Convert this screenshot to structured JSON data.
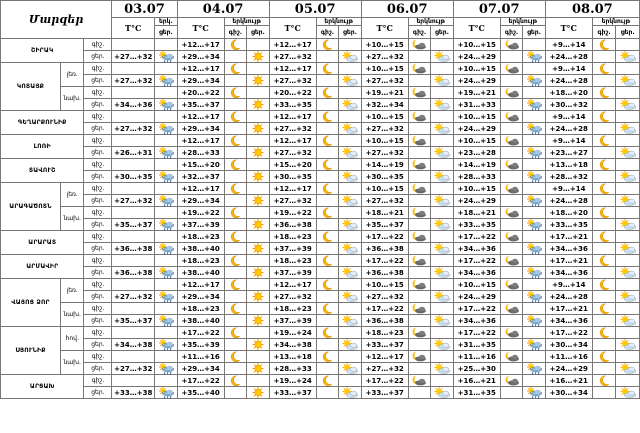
{
  "header": {
    "regions_label": "Մարզեր",
    "dates": [
      "03.07",
      "04.07",
      "05.07",
      "06.07",
      "07.07",
      "08.07"
    ],
    "temp_label": "T°C",
    "sky_label": "երկնույթ",
    "sky_label_short": "երկ.",
    "day_short": "ցերեկ",
    "night_short": "գիշ.",
    "day_abbr": "ցեր.",
    "night_abbr": "գիշ."
  },
  "regions": [
    {
      "name": "ՇԻՐԱԿ",
      "subs": [
        {
          "label": "",
          "rows": [
            {
              "tod": "գիշ.",
              "temps": [
                "",
                "+12…+17",
                "+12…+17",
                "+10…+15",
                "+10…+15",
                "+9…+14"
              ],
              "icons": [
                "",
                "moon",
                "moon",
                "moon-cloud",
                "moon-cloud",
                "moon"
              ]
            },
            {
              "tod": "ցեր.",
              "temps": [
                "+27…+32",
                "+29…+34",
                "+27…+32",
                "+27…+32",
                "+24…+29",
                "+24…+28"
              ],
              "icons": [
                "sun-cloud-rain",
                "sun",
                "sun-cloud",
                "sun-cloud",
                "sun-cloud-rain",
                "sun-cloud"
              ]
            }
          ]
        }
      ]
    },
    {
      "name": "ԿՈՏԱՅՔ",
      "subs": [
        {
          "label": "լեռ.",
          "rows": [
            {
              "tod": "գիշ.",
              "temps": [
                "",
                "+12…+17",
                "+12…+17",
                "+10…+15",
                "+10…+15",
                "+9…+14"
              ],
              "icons": [
                "",
                "moon",
                "moon",
                "moon-cloud",
                "moon-cloud",
                "moon"
              ]
            },
            {
              "tod": "ցեր.",
              "temps": [
                "+27…+32",
                "+29…+34",
                "+27…+32",
                "+27…+32",
                "+24…+29",
                "+24…+28"
              ],
              "icons": [
                "sun-cloud-rain",
                "sun",
                "sun-cloud",
                "sun-cloud",
                "sun-cloud-rain",
                "sun-cloud"
              ]
            }
          ]
        },
        {
          "label": "նախ.",
          "rows": [
            {
              "tod": "գիշ.",
              "temps": [
                "",
                "+20…+22",
                "+20…+22",
                "+19…+21",
                "+19…+21",
                "+18…+20"
              ],
              "icons": [
                "",
                "moon",
                "moon",
                "moon-cloud",
                "moon-cloud",
                "moon"
              ]
            },
            {
              "tod": "ցեր.",
              "temps": [
                "+34…+36",
                "+35…+37",
                "+33…+35",
                "+32…+34",
                "+31…+33",
                "+30…+32"
              ],
              "icons": [
                "sun-cloud-rain",
                "sun",
                "sun-cloud",
                "sun-cloud",
                "sun-cloud-rain",
                "sun-cloud"
              ]
            }
          ]
        }
      ]
    },
    {
      "name": "ԳԵՂԱՐՔՈՒՆԻՔ",
      "subs": [
        {
          "label": "",
          "rows": [
            {
              "tod": "գիշ.",
              "temps": [
                "",
                "+12…+17",
                "+12…+17",
                "+10…+15",
                "+10…+15",
                "+9…+14"
              ],
              "icons": [
                "",
                "moon",
                "moon",
                "moon-cloud",
                "moon-cloud",
                "moon"
              ]
            },
            {
              "tod": "ցեր.",
              "temps": [
                "+27…+32",
                "+29…+34",
                "+27…+32",
                "+27…+32",
                "+24…+29",
                "+24…+28"
              ],
              "icons": [
                "sun-cloud-rain",
                "sun",
                "sun-cloud",
                "sun-cloud",
                "sun-cloud-rain",
                "sun-cloud"
              ]
            }
          ]
        }
      ]
    },
    {
      "name": "ԼՈՌԻ",
      "subs": [
        {
          "label": "",
          "rows": [
            {
              "tod": "գիշ.",
              "temps": [
                "",
                "+12…+17",
                "+12…+17",
                "+10…+15",
                "+10…+15",
                "+9…+14"
              ],
              "icons": [
                "",
                "moon",
                "moon",
                "moon-cloud",
                "moon-cloud",
                "moon"
              ]
            },
            {
              "tod": "ցեր.",
              "temps": [
                "+26…+31",
                "+28…+33",
                "+27…+32",
                "+27…+32",
                "+23…+28",
                "+23…+27"
              ],
              "icons": [
                "sun-cloud-rain",
                "sun",
                "sun-cloud",
                "sun-cloud",
                "sun-cloud-rain",
                "sun-cloud"
              ]
            }
          ]
        }
      ]
    },
    {
      "name": "ՏԱՎՈՒՇ",
      "subs": [
        {
          "label": "",
          "rows": [
            {
              "tod": "գիշ.",
              "temps": [
                "",
                "+15…+20",
                "+15…+20",
                "+14…+19",
                "+14…+19",
                "+13…+18"
              ],
              "icons": [
                "",
                "moon",
                "moon",
                "moon-cloud",
                "moon-cloud",
                "moon"
              ]
            },
            {
              "tod": "ցեր.",
              "temps": [
                "+30…+35",
                "+32…+37",
                "+30…+35",
                "+30…+35",
                "+28…+33",
                "+28…+32"
              ],
              "icons": [
                "sun-cloud-rain",
                "sun",
                "sun-cloud",
                "sun-cloud",
                "sun-cloud-rain",
                "sun-cloud"
              ]
            }
          ]
        }
      ]
    },
    {
      "name": "ԱՐԱԳԱԾՈՏՆ",
      "subs": [
        {
          "label": "լեռ.",
          "rows": [
            {
              "tod": "գիշ.",
              "temps": [
                "",
                "+12…+17",
                "+12…+17",
                "+10…+15",
                "+10…+15",
                "+9…+14"
              ],
              "icons": [
                "",
                "moon",
                "moon",
                "moon-cloud",
                "moon-cloud",
                "moon"
              ]
            },
            {
              "tod": "ցեր.",
              "temps": [
                "+27…+32",
                "+29…+34",
                "+27…+32",
                "+27…+32",
                "+24…+29",
                "+24…+28"
              ],
              "icons": [
                "sun-cloud-rain",
                "sun",
                "sun-cloud",
                "sun-cloud",
                "sun-cloud-rain",
                "sun-cloud"
              ]
            }
          ]
        },
        {
          "label": "նախ.",
          "rows": [
            {
              "tod": "գիշ.",
              "temps": [
                "",
                "+19…+22",
                "+19…+22",
                "+18…+21",
                "+18…+21",
                "+18…+20"
              ],
              "icons": [
                "",
                "moon",
                "moon",
                "moon-cloud",
                "moon-cloud",
                "moon"
              ]
            },
            {
              "tod": "ցեր.",
              "temps": [
                "+35…+37",
                "+37…+39",
                "+36…+38",
                "+35…+37",
                "+33…+35",
                "+33…+35"
              ],
              "icons": [
                "sun-cloud-rain",
                "sun",
                "sun-cloud",
                "sun-cloud",
                "sun-cloud-rain",
                "sun-cloud"
              ]
            }
          ]
        }
      ]
    },
    {
      "name": "ԱՐԱՐԱՏ",
      "subs": [
        {
          "label": "",
          "rows": [
            {
              "tod": "գիշ.",
              "temps": [
                "",
                "+18…+23",
                "+18…+23",
                "+17…+22",
                "+17…+22",
                "+17…+21"
              ],
              "icons": [
                "",
                "moon",
                "moon",
                "moon-cloud",
                "moon-cloud",
                "moon"
              ]
            },
            {
              "tod": "ցեր.",
              "temps": [
                "+36…+38",
                "+38…+40",
                "+37…+39",
                "+36…+38",
                "+34…+36",
                "+34…+36"
              ],
              "icons": [
                "sun-cloud-rain",
                "sun",
                "sun-cloud",
                "sun-cloud",
                "sun-cloud-rain",
                "sun-cloud"
              ]
            }
          ]
        }
      ]
    },
    {
      "name": "ԱՐՄԱՎԻՐ",
      "subs": [
        {
          "label": "",
          "rows": [
            {
              "tod": "գիշ.",
              "temps": [
                "",
                "+18…+23",
                "+18…+23",
                "+17…+22",
                "+17…+22",
                "+17…+21"
              ],
              "icons": [
                "",
                "moon",
                "moon",
                "moon-cloud",
                "moon-cloud",
                "moon"
              ]
            },
            {
              "tod": "ցեր.",
              "temps": [
                "+36…+38",
                "+38…+40",
                "+37…+39",
                "+36…+38",
                "+34…+36",
                "+34…+36"
              ],
              "icons": [
                "sun-cloud-rain",
                "sun",
                "sun-cloud",
                "sun-cloud",
                "sun-cloud-rain",
                "sun-cloud"
              ]
            }
          ]
        }
      ]
    },
    {
      "name": "ՎԱՅՈՑ ՁՈՐ",
      "subs": [
        {
          "label": "լեռ.",
          "rows": [
            {
              "tod": "գիշ.",
              "temps": [
                "",
                "+12…+17",
                "+12…+17",
                "+10…+15",
                "+10…+15",
                "+9…+14"
              ],
              "icons": [
                "",
                "moon",
                "moon",
                "moon-cloud",
                "moon-cloud",
                "moon"
              ]
            },
            {
              "tod": "ցեր.",
              "temps": [
                "+27…+32",
                "+29…+34",
                "+27…+32",
                "+27…+32",
                "+24…+29",
                "+24…+28"
              ],
              "icons": [
                "sun-cloud-rain",
                "sun",
                "sun-cloud",
                "sun-cloud",
                "sun-cloud-rain",
                "sun-cloud"
              ]
            }
          ]
        },
        {
          "label": "նախ.",
          "rows": [
            {
              "tod": "գիշ.",
              "temps": [
                "",
                "+18…+23",
                "+18…+23",
                "+17…+22",
                "+17…+22",
                "+17…+21"
              ],
              "icons": [
                "",
                "moon",
                "moon",
                "moon-cloud",
                "moon-cloud",
                "moon"
              ]
            },
            {
              "tod": "ցեր.",
              "temps": [
                "+35…+37",
                "+38…+40",
                "+37…+39",
                "+36…+38",
                "+34…+36",
                "+34…+36"
              ],
              "icons": [
                "sun-cloud-rain",
                "sun",
                "sun-cloud",
                "sun-cloud",
                "sun-cloud-rain",
                "sun-cloud"
              ]
            }
          ]
        }
      ]
    },
    {
      "name": "ՍՅՈՒՆԻՔ",
      "subs": [
        {
          "label": "հով.",
          "rows": [
            {
              "tod": "գիշ.",
              "temps": [
                "",
                "+17…+22",
                "+19…+24",
                "+18…+23",
                "+17…+22",
                "+17…+22"
              ],
              "icons": [
                "",
                "moon",
                "moon",
                "moon-cloud",
                "moon-cloud",
                "moon"
              ]
            },
            {
              "tod": "ցեր.",
              "temps": [
                "+34…+38",
                "+35…+39",
                "+34…+38",
                "+33…+37",
                "+31…+35",
                "+30…+34"
              ],
              "icons": [
                "sun-cloud-rain",
                "sun",
                "sun-cloud",
                "sun-cloud",
                "sun-cloud-rain",
                "sun-cloud"
              ]
            }
          ]
        },
        {
          "label": "նախ.",
          "rows": [
            {
              "tod": "գիշ.",
              "temps": [
                "",
                "+11…+16",
                "+13…+18",
                "+12…+17",
                "+11…+16",
                "+11…+16"
              ],
              "icons": [
                "",
                "moon",
                "moon",
                "moon-cloud",
                "moon-cloud",
                "moon"
              ]
            },
            {
              "tod": "ցեր.",
              "temps": [
                "+27…+32",
                "+29…+34",
                "+28…+33",
                "+27…+32",
                "+25…+30",
                "+24…+29"
              ],
              "icons": [
                "sun-cloud-rain",
                "sun",
                "sun-cloud",
                "sun-cloud",
                "sun-cloud-rain",
                "sun-cloud"
              ]
            }
          ]
        }
      ]
    },
    {
      "name": "ԱՐՑԱԽ",
      "subs": [
        {
          "label": "",
          "rows": [
            {
              "tod": "գիշ.",
              "temps": [
                "",
                "+17…+22",
                "+19…+24",
                "+17…+22",
                "+16…+21",
                "+16…+21"
              ],
              "icons": [
                "",
                "moon",
                "moon",
                "moon-cloud",
                "moon-cloud",
                "moon"
              ]
            },
            {
              "tod": "ցեր.",
              "temps": [
                "+33…+38",
                "+35…+40",
                "+33…+37",
                "+33…+37",
                "+31…+35",
                "+30…+34"
              ],
              "icons": [
                "sun-cloud-rain",
                "sun",
                "sun-cloud",
                "sun-cloud",
                "sun-cloud-rain",
                "sun-cloud"
              ]
            }
          ]
        }
      ]
    }
  ]
}
